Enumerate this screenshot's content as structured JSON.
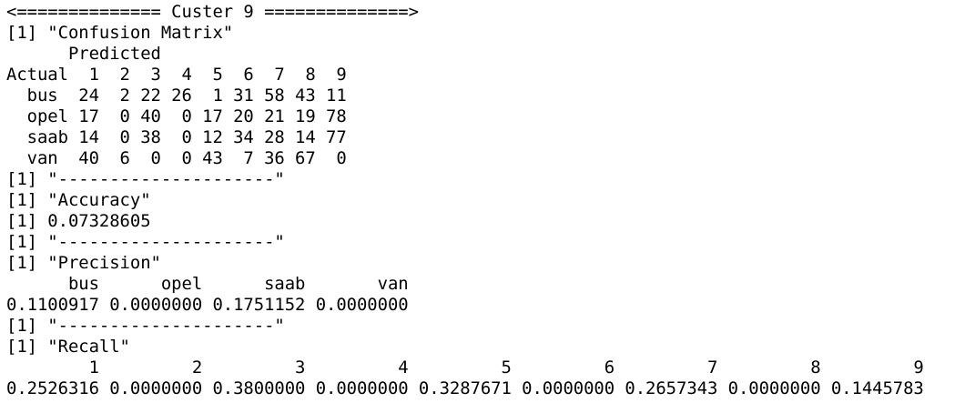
{
  "console": {
    "lines": [
      "<============== Custer 9 ==============>",
      "[1] \"Confusion Matrix\"",
      "      Predicted",
      "Actual  1  2  3  4  5  6  7  8  9",
      "  bus  24  2 22 26  1 31 58 43 11",
      "  opel 17  0 40  0 17 20 21 19 78",
      "  saab 14  0 38  0 12 34 28 14 77",
      "  van  40  6  0  0 43  7 36 67  0",
      "[1] \"---------------------\"",
      "[1] \"Accuracy\"",
      "[1] 0.07328605",
      "[1] \"---------------------\"",
      "[1] \"Precision\"",
      "      bus      opel      saab       van",
      "0.1100917 0.0000000 0.1751152 0.0000000",
      "[1] \"---------------------\"",
      "[1] \"Recall\"",
      "        1         2         3         4         5         6         7         8         9",
      "0.2526316 0.0000000 0.3800000 0.0000000 0.3287671 0.0000000 0.2657343 0.0000000 0.1445783"
    ]
  }
}
